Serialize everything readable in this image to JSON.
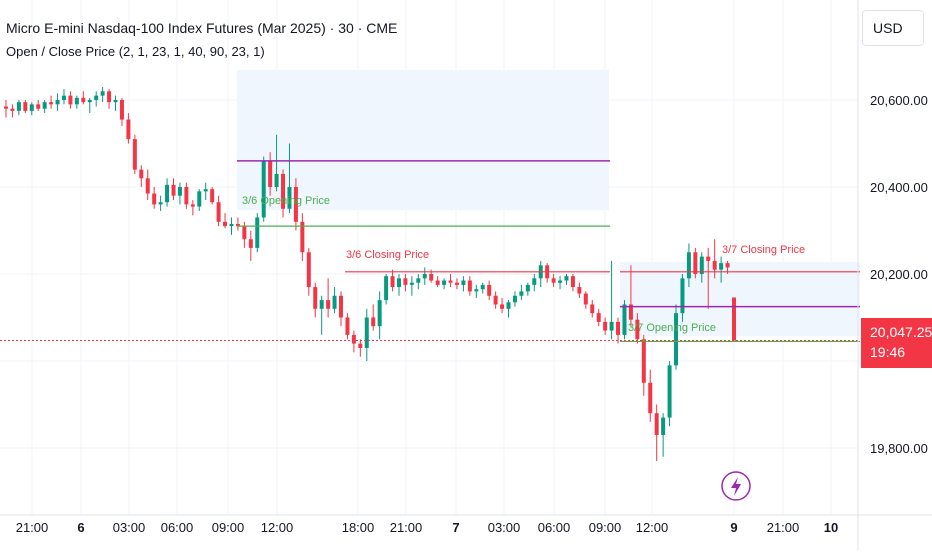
{
  "header": {
    "title": "Micro E-mini Nasdaq-100 Index Futures (Mar 2025) · 30 · CME",
    "indicator": "Open / Close Price (2, 1, 23, 1, 40, 90, 23, 1)",
    "currency": "USD"
  },
  "price_tag": {
    "price": "20,047.25",
    "countdown": "19:46"
  },
  "colors": {
    "up": "#089981",
    "down": "#f23645",
    "purple": "#9c27b0",
    "green_line": "#4caf50",
    "red_line": "#f23645",
    "shade": "#f0f6fd"
  },
  "chart_data": {
    "type": "candlestick",
    "title": "Micro E-mini Nasdaq-100 Index Futures (Mar 2025) · 30 · CME",
    "ylim": [
      19700,
      20700
    ],
    "y_ticks": [
      "20,600.00",
      "20,400.00",
      "20,200.00",
      "19,800.00"
    ],
    "y_tick_values": [
      20600,
      20400,
      20200,
      19800
    ],
    "x_ticks": [
      "21:00",
      "6",
      "03:00",
      "06:00",
      "09:00",
      "12:00",
      "18:00",
      "21:00",
      "7",
      "03:00",
      "06:00",
      "09:00",
      "12:00",
      "9",
      "21:00",
      "10"
    ],
    "last_price": 20047.25,
    "candles": [
      [
        20585,
        20600,
        20560,
        20580
      ],
      [
        20580,
        20590,
        20560,
        20575
      ],
      [
        20575,
        20600,
        20565,
        20595
      ],
      [
        20595,
        20600,
        20570,
        20575
      ],
      [
        20575,
        20595,
        20565,
        20590
      ],
      [
        20590,
        20600,
        20575,
        20580
      ],
      [
        20580,
        20600,
        20570,
        20595
      ],
      [
        20595,
        20610,
        20580,
        20590
      ],
      [
        20590,
        20615,
        20575,
        20600
      ],
      [
        20600,
        20625,
        20590,
        20610
      ],
      [
        20610,
        20620,
        20580,
        20590
      ],
      [
        20590,
        20610,
        20580,
        20605
      ],
      [
        20605,
        20620,
        20590,
        20595
      ],
      [
        20595,
        20605,
        20570,
        20600
      ],
      [
        20600,
        20620,
        20585,
        20610
      ],
      [
        20610,
        20630,
        20595,
        20620
      ],
      [
        20620,
        20625,
        20580,
        20595
      ],
      [
        20595,
        20610,
        20575,
        20600
      ],
      [
        20600,
        20605,
        20540,
        20555
      ],
      [
        20555,
        20570,
        20500,
        20510
      ],
      [
        20510,
        20520,
        20430,
        20440
      ],
      [
        20440,
        20450,
        20400,
        20420
      ],
      [
        20420,
        20440,
        20370,
        20385
      ],
      [
        20385,
        20400,
        20350,
        20360
      ],
      [
        20360,
        20380,
        20345,
        20365
      ],
      [
        20365,
        20420,
        20355,
        20405
      ],
      [
        20405,
        20420,
        20370,
        20380
      ],
      [
        20380,
        20410,
        20360,
        20400
      ],
      [
        20400,
        20410,
        20350,
        20360
      ],
      [
        20360,
        20370,
        20335,
        20355
      ],
      [
        20355,
        20395,
        20345,
        20390
      ],
      [
        20390,
        20410,
        20370,
        20395
      ],
      [
        20395,
        20400,
        20360,
        20365
      ],
      [
        20365,
        20380,
        20310,
        20320
      ],
      [
        20320,
        20340,
        20305,
        20310
      ],
      [
        20310,
        20330,
        20290,
        20315
      ],
      [
        20315,
        20330,
        20300,
        20310
      ],
      [
        20310,
        20320,
        20260,
        20280
      ],
      [
        20280,
        20300,
        20230,
        20260
      ],
      [
        20260,
        20340,
        20250,
        20330
      ],
      [
        20330,
        20470,
        20320,
        20460
      ],
      [
        20460,
        20480,
        20380,
        20400
      ],
      [
        20400,
        20520,
        20390,
        20430
      ],
      [
        20430,
        20440,
        20330,
        20350
      ],
      [
        20350,
        20500,
        20340,
        20400
      ],
      [
        20400,
        20420,
        20300,
        20320
      ],
      [
        20320,
        20340,
        20230,
        20250
      ],
      [
        20250,
        20260,
        20150,
        20170
      ],
      [
        20170,
        20180,
        20100,
        20120
      ],
      [
        20120,
        20150,
        20060,
        20140
      ],
      [
        20140,
        20190,
        20100,
        20120
      ],
      [
        20120,
        20170,
        20110,
        20150
      ],
      [
        20150,
        20160,
        20080,
        20100
      ],
      [
        20100,
        20110,
        20050,
        20060
      ],
      [
        20060,
        20070,
        20020,
        20040
      ],
      [
        20040,
        20050,
        20010,
        20030
      ],
      [
        20030,
        20120,
        20000,
        20100
      ],
      [
        20100,
        20130,
        20070,
        20080
      ],
      [
        20080,
        20160,
        20050,
        20140
      ],
      [
        20140,
        20200,
        20130,
        20195
      ],
      [
        20195,
        20210,
        20160,
        20170
      ],
      [
        20170,
        20200,
        20150,
        20190
      ],
      [
        20190,
        20200,
        20160,
        20175
      ],
      [
        20175,
        20195,
        20150,
        20180
      ],
      [
        20180,
        20200,
        20165,
        20190
      ],
      [
        20190,
        20215,
        20175,
        20200
      ],
      [
        20200,
        20210,
        20180,
        20185
      ],
      [
        20185,
        20195,
        20170,
        20175
      ],
      [
        20175,
        20190,
        20165,
        20185
      ],
      [
        20185,
        20200,
        20170,
        20180
      ],
      [
        20180,
        20190,
        20165,
        20175
      ],
      [
        20175,
        20195,
        20160,
        20185
      ],
      [
        20185,
        20195,
        20150,
        20160
      ],
      [
        20160,
        20175,
        20145,
        20165
      ],
      [
        20165,
        20180,
        20155,
        20175
      ],
      [
        20175,
        20185,
        20140,
        20150
      ],
      [
        20150,
        20160,
        20120,
        20130
      ],
      [
        20130,
        20145,
        20110,
        20120
      ],
      [
        20120,
        20140,
        20100,
        20135
      ],
      [
        20135,
        20160,
        20125,
        20150
      ],
      [
        20150,
        20175,
        20140,
        20160
      ],
      [
        20160,
        20180,
        20150,
        20175
      ],
      [
        20175,
        20200,
        20160,
        20190
      ],
      [
        20190,
        20230,
        20170,
        20220
      ],
      [
        20220,
        20225,
        20180,
        20190
      ],
      [
        20190,
        20200,
        20170,
        20180
      ],
      [
        20180,
        20195,
        20165,
        20185
      ],
      [
        20185,
        20200,
        20175,
        20195
      ],
      [
        20195,
        20200,
        20160,
        20170
      ],
      [
        20170,
        20180,
        20145,
        20155
      ],
      [
        20155,
        20160,
        20120,
        20130
      ],
      [
        20130,
        20140,
        20100,
        20110
      ],
      [
        20110,
        20120,
        20080,
        20090
      ],
      [
        20090,
        20100,
        20060,
        20070
      ],
      [
        20070,
        20230,
        20050,
        20090
      ],
      [
        20090,
        20100,
        20040,
        20060
      ],
      [
        20060,
        20140,
        20050,
        20130
      ],
      [
        20130,
        20220,
        20080,
        20095
      ],
      [
        20095,
        20110,
        20040,
        20050
      ],
      [
        20050,
        20060,
        19920,
        19950
      ],
      [
        19950,
        19980,
        19860,
        19880
      ],
      [
        19880,
        19900,
        19770,
        19830
      ],
      [
        19830,
        19880,
        19780,
        19870
      ],
      [
        19870,
        20000,
        19850,
        19990
      ],
      [
        19990,
        20130,
        19980,
        20110
      ],
      [
        20110,
        20200,
        20090,
        20190
      ],
      [
        20190,
        20270,
        20170,
        20250
      ],
      [
        20250,
        20260,
        20190,
        20200
      ],
      [
        20200,
        20250,
        20180,
        20240
      ],
      [
        20240,
        20260,
        20120,
        20230
      ],
      [
        20230,
        20280,
        20190,
        20210
      ],
      [
        20210,
        20240,
        20180,
        20225
      ],
      [
        20225,
        20230,
        20200,
        20215
      ],
      [
        20146,
        20146,
        20047,
        20047
      ]
    ],
    "annotations": [
      {
        "text": "3/6 Opening Price",
        "price": 20310
      },
      {
        "text": "3/6 Closing Price",
        "price": 20205
      },
      {
        "text": "3/7 Closing Price",
        "price": 20205
      },
      {
        "text": "3/7 Opening Price",
        "price": 20045
      }
    ],
    "levels": [
      {
        "name": "purple-high",
        "price": 20460
      },
      {
        "name": "purple-mid",
        "price": 20125
      }
    ]
  }
}
